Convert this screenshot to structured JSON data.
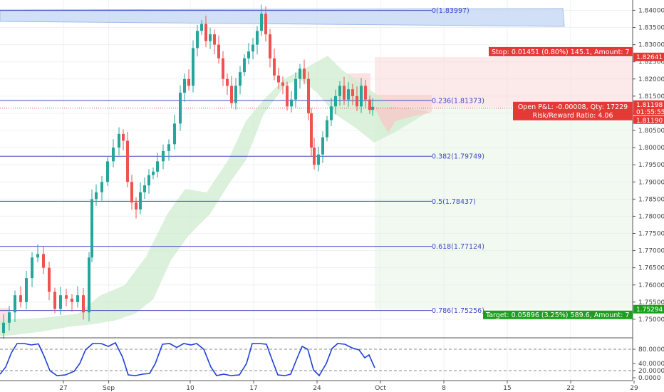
{
  "chart_data": {
    "type": "candlestick",
    "price_axis": {
      "min": 1.745,
      "max": 1.843,
      "ticks": [
        "1.84000",
        "1.83500",
        "1.83000",
        "1.82500",
        "1.82000",
        "1.81500",
        "1.81000",
        "1.80500",
        "1.80000",
        "1.79500",
        "1.79000",
        "1.78500",
        "1.78000",
        "1.77500",
        "1.77000",
        "1.76500",
        "1.76000",
        "1.75500",
        "1.75000"
      ]
    },
    "time_axis": {
      "labels": [
        {
          "text": "27",
          "day": 27
        },
        {
          "text": "Sep",
          "day": 32
        },
        {
          "text": "10",
          "day": 41
        },
        {
          "text": "17",
          "day": 48
        },
        {
          "text": "24",
          "day": 55
        },
        {
          "text": "Oct",
          "day": 62
        },
        {
          "text": "8",
          "day": 69
        },
        {
          "text": "15",
          "day": 76
        },
        {
          "text": "22",
          "day": 83
        },
        {
          "text": "29",
          "day": 90
        }
      ]
    },
    "fib_levels": [
      {
        "label": "0(1.83997)",
        "price": 1.83997
      },
      {
        "label": "0.236(1.81373)",
        "price": 1.81373
      },
      {
        "label": "0.382(1.79749)",
        "price": 1.79749
      },
      {
        "label": "0.5(1.78437)",
        "price": 1.78437
      },
      {
        "label": "0.618(1.77124)",
        "price": 1.77124
      },
      {
        "label": "0.786(1.75256)",
        "price": 1.75256
      }
    ],
    "position": {
      "entry": 1.8119,
      "stop": 1.82641,
      "target": 1.75294,
      "stop_text": "Stop: 0.01451 (0.80%) 145.1, Amount: 7",
      "target_text": "Target: 0.05896 (3.25%) 589.6, Amount: 7",
      "pnl_text": "Open P&L: -0.00008, Qty: 17229",
      "rr_text": "Risk/Reward Ratio: 4.06"
    },
    "price_tags": {
      "stop": "1.82641",
      "last": "1.81198",
      "countdown": "01:55:55",
      "entry": "1.81190",
      "target": "1.75294"
    },
    "oscillator": {
      "min": 0,
      "max": 100,
      "ticks": [
        "80.0000",
        "40.0000",
        "20.0000",
        "0.0000"
      ],
      "upper_band": 80,
      "lower_band": 20
    },
    "colors": {
      "up": "#26a69a",
      "down": "#ef5350",
      "fib": "#3f48c8",
      "stop": "#e53935",
      "target": "#1e9e1e",
      "cloud": "#cfeccf",
      "osc": "#1f3fd8"
    }
  }
}
